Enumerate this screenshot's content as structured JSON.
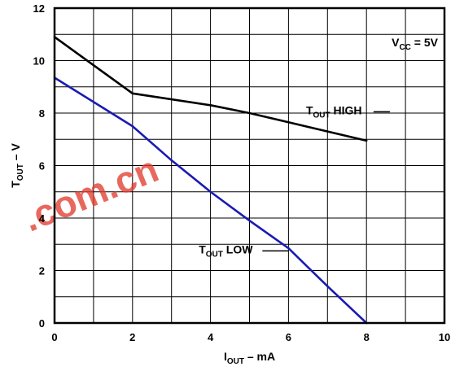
{
  "chart_data": {
    "type": "line",
    "xlim": [
      0,
      10
    ],
    "ylim": [
      0,
      12
    ],
    "x_ticks": [
      "0",
      "2",
      "4",
      "6",
      "8",
      "10"
    ],
    "y_ticks": [
      "0",
      "2",
      "4",
      "6",
      "8",
      "10",
      "12"
    ],
    "grid": true,
    "xlabel": {
      "main": "I",
      "sub": "OUT",
      "rest": " – mA"
    },
    "ylabel": {
      "main": "T",
      "sub": "OUT",
      "rest": " – V"
    },
    "condition": {
      "main": "V",
      "sub": "CC",
      "rest": " = 5V"
    },
    "series": [
      {
        "name": "T_OUT HIGH",
        "label": {
          "main": "T",
          "sub": "OUT",
          "rest": " HIGH"
        },
        "color": "#000000",
        "points": [
          [
            0,
            10.9
          ],
          [
            2,
            8.75
          ],
          [
            4,
            8.3
          ],
          [
            5,
            8.0
          ],
          [
            6,
            7.65
          ],
          [
            8,
            6.95
          ]
        ]
      },
      {
        "name": "T_OUT LOW",
        "label": {
          "main": "T",
          "sub": "OUT",
          "rest": " LOW"
        },
        "color": "#1a1ab4",
        "points": [
          [
            0,
            9.35
          ],
          [
            2,
            7.5
          ],
          [
            3,
            6.2
          ],
          [
            4,
            5.0
          ],
          [
            5,
            3.9
          ],
          [
            6,
            2.85
          ],
          [
            7,
            1.4
          ],
          [
            8,
            0.0
          ]
        ]
      }
    ],
    "watermark": {
      "text": ".com.cn",
      "color": "#e23b2e"
    }
  }
}
